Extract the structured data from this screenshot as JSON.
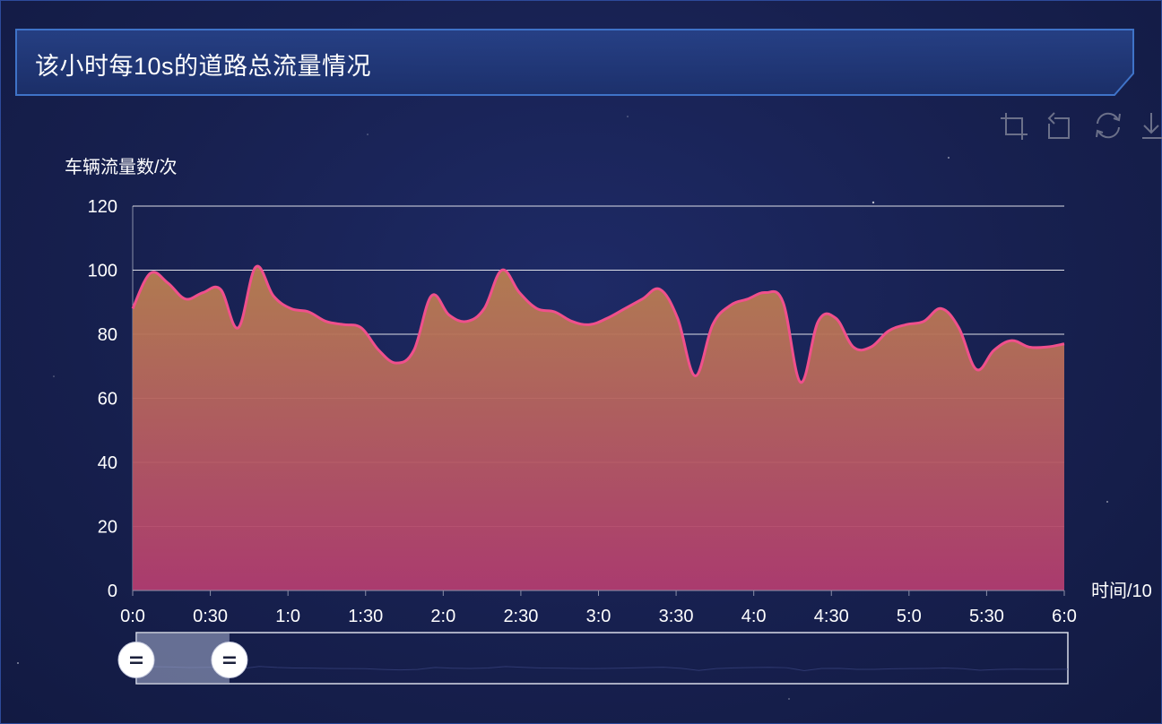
{
  "title": "该小时每10s的道路总流量情况",
  "toolbox": {
    "items": [
      {
        "name": "zoom",
        "icon": "zoom-icon"
      },
      {
        "name": "zoom-reset",
        "icon": "zoom-back-icon"
      },
      {
        "name": "restore",
        "icon": "restore-icon"
      },
      {
        "name": "save",
        "icon": "download-icon"
      }
    ]
  },
  "colors": {
    "line": "#f0508c",
    "area_top": "#b98050",
    "area_bottom": "#b23c70",
    "grid": "#ffffff",
    "background": "#17204f"
  },
  "chart_data": {
    "type": "area",
    "ylabel": "车辆流量数/次",
    "xlabel": "时间/10",
    "ylim": [
      0,
      120
    ],
    "yticks": [
      0,
      20,
      40,
      60,
      80,
      100,
      120
    ],
    "xticks": [
      "0:0",
      "0:30",
      "1:0",
      "1:30",
      "2:0",
      "2:30",
      "3:0",
      "3:30",
      "4:0",
      "4:30",
      "5:0",
      "5:30",
      "6:0"
    ],
    "x_points_per_tick": 3,
    "series": [
      {
        "values": [
          88,
          99,
          96,
          91,
          93,
          94,
          82,
          101,
          92,
          88,
          87,
          84,
          83,
          82,
          75,
          71,
          75,
          92,
          86,
          84,
          88,
          100,
          93,
          88,
          87,
          84,
          83,
          85,
          88,
          91,
          94,
          85,
          67,
          83,
          89,
          91,
          93,
          90,
          65,
          84,
          85,
          76,
          76,
          81,
          83,
          84,
          88,
          82,
          69,
          75,
          78,
          76,
          76,
          77
        ]
      }
    ],
    "dataZoom": {
      "start": 0,
      "end": 10
    }
  }
}
